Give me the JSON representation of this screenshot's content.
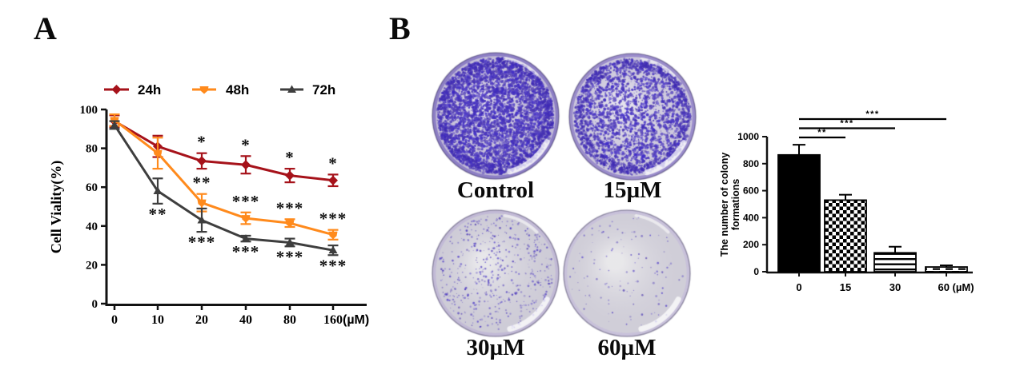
{
  "figure": {
    "panel_a_label": "A",
    "panel_b_label": "B"
  },
  "colors": {
    "axis": "#121212",
    "star": "#121212",
    "bar_fill": "#000000",
    "stain_dot": "#4634B4"
  },
  "chart_data": [
    {
      "id": "cell-viability",
      "type": "line",
      "title": "",
      "xlabel": "(µM)",
      "ylabel": "Cell Viality(%)",
      "categories": [
        "0",
        "10",
        "20",
        "40",
        "80",
        "160"
      ],
      "x_unit": "(µM)",
      "ylim": [
        0,
        100
      ],
      "yticks": [
        0,
        20,
        40,
        60,
        80,
        100
      ],
      "grid": false,
      "legend_position": "top",
      "series": [
        {
          "name": "24h",
          "color": "#A6121A",
          "marker": "diamond",
          "values": [
            94,
            81,
            73.5,
            71.5,
            66,
            63.5
          ],
          "errors": [
            3,
            5.5,
            4,
            4.5,
            3.5,
            3
          ],
          "stars": [
            "",
            "",
            "*",
            "*",
            "*",
            "*"
          ],
          "star_side": "above"
        },
        {
          "name": "48h",
          "color": "#FF8A1C",
          "marker": "pentagon",
          "values": [
            94.5,
            77.5,
            52,
            44,
            41.5,
            35.5
          ],
          "errors": [
            3,
            8,
            4.5,
            3,
            2,
            2.5
          ],
          "stars": [
            "",
            "",
            "**",
            "***",
            "***",
            "***"
          ],
          "star_side": "above"
        },
        {
          "name": "72h",
          "color": "#3E3E3E",
          "marker": "triangle",
          "values": [
            92,
            58,
            43,
            33.5,
            31.5,
            27.5
          ],
          "errors": [
            2,
            6.5,
            6,
            1.5,
            2,
            2.5
          ],
          "stars": [
            "",
            "**",
            "***",
            "***",
            "***",
            "***"
          ],
          "star_side": "below"
        }
      ]
    },
    {
      "id": "colony-count",
      "type": "bar",
      "title": "",
      "ylabel_lines": [
        "The number of colony",
        "formations"
      ],
      "categories": [
        "0",
        "15",
        "30",
        "60"
      ],
      "x_unit": "(µM)",
      "values": [
        865,
        530,
        140,
        35
      ],
      "errors": [
        75,
        40,
        45,
        12
      ],
      "ylim": [
        0,
        1000
      ],
      "yticks": [
        0,
        200,
        400,
        600,
        800,
        1000
      ],
      "grid": false,
      "bar_patterns": [
        "solid",
        "checker",
        "hlines",
        "dashes"
      ],
      "significance": [
        {
          "from": 0,
          "to": 1,
          "label": "**",
          "row": 0
        },
        {
          "from": 0,
          "to": 2,
          "label": "***",
          "row": 1
        },
        {
          "from": 0,
          "to": 3,
          "label": "***",
          "row": 2
        }
      ]
    }
  ],
  "panel_b": {
    "dishes": [
      {
        "label": "Control",
        "stain_level": "very dense",
        "dots": 4200,
        "base": "#CEC8DF",
        "rim": "#8D7FC5"
      },
      {
        "label": "15µM",
        "stain_level": "dense",
        "dots": 2300,
        "base": "#D8D4E4",
        "rim": "#9A8CCB"
      },
      {
        "label": "30µM",
        "stain_level": "sparse",
        "dots": 520,
        "base": "#DBDADF",
        "rim": "#C2BAD6"
      },
      {
        "label": "60µM",
        "stain_level": "minimal",
        "dots": 120,
        "base": "#DDDCE0",
        "rim": "#C8C1DA"
      }
    ]
  }
}
